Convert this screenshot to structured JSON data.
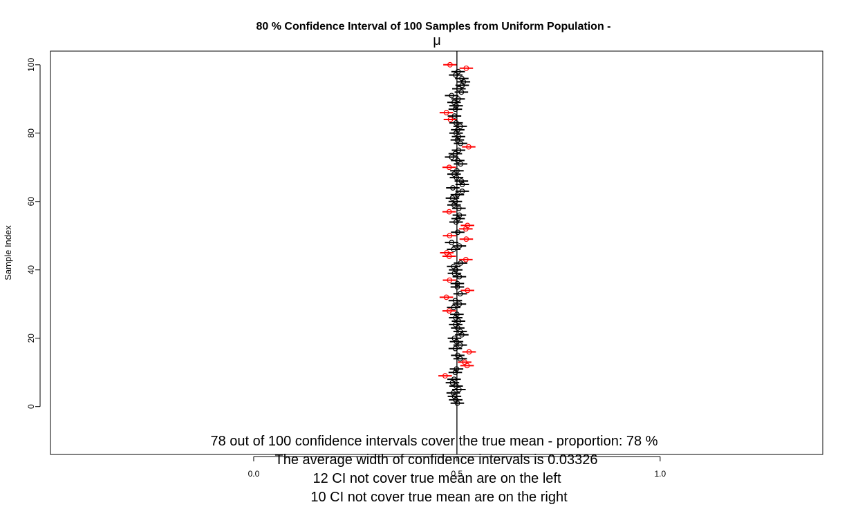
{
  "chart_data": {
    "type": "scatter",
    "title": "80 % Confidence Interval of 100  Samples from Uniform Population -",
    "mu_label": "μ",
    "xlabel": "",
    "ylabel": "Sample Index",
    "xlim": [
      -0.5,
      1.4
    ],
    "ylim": [
      -14,
      104
    ],
    "x_ticks": [
      0.0,
      0.5,
      1.0
    ],
    "x_tick_labels": [
      "0.0",
      "0.5",
      "1.0"
    ],
    "y_ticks": [
      0,
      20,
      40,
      60,
      80,
      100
    ],
    "y_tick_labels": [
      "0",
      "20",
      "40",
      "60",
      "80",
      "100"
    ],
    "true_mean": 0.5,
    "ci_width": 0.03326,
    "colors": {
      "cover": "#000000",
      "miss": "#ff0000",
      "mean_line": "#000000"
    },
    "samples": [
      {
        "i": 1,
        "mean": 0.501,
        "miss": false
      },
      {
        "i": 2,
        "mean": 0.497,
        "miss": false
      },
      {
        "i": 3,
        "mean": 0.494,
        "miss": false
      },
      {
        "i": 4,
        "mean": 0.491,
        "miss": false
      },
      {
        "i": 5,
        "mean": 0.505,
        "miss": false
      },
      {
        "i": 6,
        "mean": 0.498,
        "miss": false
      },
      {
        "i": 7,
        "mean": 0.489,
        "miss": false
      },
      {
        "i": 8,
        "mean": 0.493,
        "miss": false
      },
      {
        "i": 9,
        "mean": 0.471,
        "miss": true
      },
      {
        "i": 10,
        "mean": 0.496,
        "miss": false
      },
      {
        "i": 11,
        "mean": 0.499,
        "miss": false
      },
      {
        "i": 12,
        "mean": 0.525,
        "miss": true
      },
      {
        "i": 13,
        "mean": 0.519,
        "miss": true
      },
      {
        "i": 14,
        "mean": 0.508,
        "miss": false
      },
      {
        "i": 15,
        "mean": 0.502,
        "miss": false
      },
      {
        "i": 16,
        "mean": 0.53,
        "miss": true
      },
      {
        "i": 17,
        "mean": 0.496,
        "miss": false
      },
      {
        "i": 18,
        "mean": 0.508,
        "miss": false
      },
      {
        "i": 19,
        "mean": 0.499,
        "miss": false
      },
      {
        "i": 20,
        "mean": 0.494,
        "miss": false
      },
      {
        "i": 21,
        "mean": 0.512,
        "miss": false
      },
      {
        "i": 22,
        "mean": 0.508,
        "miss": false
      },
      {
        "i": 23,
        "mean": 0.502,
        "miss": false
      },
      {
        "i": 24,
        "mean": 0.497,
        "miss": false
      },
      {
        "i": 25,
        "mean": 0.504,
        "miss": false
      },
      {
        "i": 26,
        "mean": 0.497,
        "miss": false
      },
      {
        "i": 27,
        "mean": 0.5,
        "miss": false
      },
      {
        "i": 28,
        "mean": 0.481,
        "miss": true
      },
      {
        "i": 29,
        "mean": 0.492,
        "miss": false
      },
      {
        "i": 30,
        "mean": 0.506,
        "miss": false
      },
      {
        "i": 31,
        "mean": 0.496,
        "miss": false
      },
      {
        "i": 32,
        "mean": 0.474,
        "miss": true
      },
      {
        "i": 33,
        "mean": 0.508,
        "miss": false
      },
      {
        "i": 34,
        "mean": 0.526,
        "miss": true
      },
      {
        "i": 35,
        "mean": 0.501,
        "miss": false
      },
      {
        "i": 36,
        "mean": 0.501,
        "miss": false
      },
      {
        "i": 37,
        "mean": 0.482,
        "miss": true
      },
      {
        "i": 38,
        "mean": 0.506,
        "miss": false
      },
      {
        "i": 39,
        "mean": 0.494,
        "miss": false
      },
      {
        "i": 40,
        "mean": 0.497,
        "miss": false
      },
      {
        "i": 41,
        "mean": 0.492,
        "miss": false
      },
      {
        "i": 42,
        "mean": 0.509,
        "miss": false
      },
      {
        "i": 43,
        "mean": 0.522,
        "miss": true
      },
      {
        "i": 44,
        "mean": 0.481,
        "miss": true
      },
      {
        "i": 45,
        "mean": 0.475,
        "miss": true
      },
      {
        "i": 46,
        "mean": 0.492,
        "miss": false
      },
      {
        "i": 47,
        "mean": 0.506,
        "miss": false
      },
      {
        "i": 48,
        "mean": 0.487,
        "miss": false
      },
      {
        "i": 49,
        "mean": 0.523,
        "miss": true
      },
      {
        "i": 50,
        "mean": 0.482,
        "miss": true
      },
      {
        "i": 51,
        "mean": 0.502,
        "miss": false
      },
      {
        "i": 52,
        "mean": 0.522,
        "miss": true
      },
      {
        "i": 53,
        "mean": 0.526,
        "miss": true
      },
      {
        "i": 54,
        "mean": 0.498,
        "miss": false
      },
      {
        "i": 55,
        "mean": 0.503,
        "miss": false
      },
      {
        "i": 56,
        "mean": 0.506,
        "miss": false
      },
      {
        "i": 57,
        "mean": 0.481,
        "miss": true
      },
      {
        "i": 58,
        "mean": 0.505,
        "miss": false
      },
      {
        "i": 59,
        "mean": 0.493,
        "miss": false
      },
      {
        "i": 60,
        "mean": 0.496,
        "miss": false
      },
      {
        "i": 61,
        "mean": 0.489,
        "miss": false
      },
      {
        "i": 62,
        "mean": 0.501,
        "miss": false
      },
      {
        "i": 63,
        "mean": 0.513,
        "miss": false
      },
      {
        "i": 64,
        "mean": 0.49,
        "miss": false
      },
      {
        "i": 65,
        "mean": 0.513,
        "miss": false
      },
      {
        "i": 66,
        "mean": 0.511,
        "miss": false
      },
      {
        "i": 67,
        "mean": 0.499,
        "miss": false
      },
      {
        "i": 68,
        "mean": 0.493,
        "miss": false
      },
      {
        "i": 69,
        "mean": 0.5,
        "miss": false
      },
      {
        "i": 70,
        "mean": 0.481,
        "miss": true
      },
      {
        "i": 71,
        "mean": 0.509,
        "miss": false
      },
      {
        "i": 72,
        "mean": 0.502,
        "miss": false
      },
      {
        "i": 73,
        "mean": 0.487,
        "miss": false
      },
      {
        "i": 74,
        "mean": 0.496,
        "miss": false
      },
      {
        "i": 75,
        "mean": 0.504,
        "miss": false
      },
      {
        "i": 76,
        "mean": 0.529,
        "miss": true
      },
      {
        "i": 77,
        "mean": 0.509,
        "miss": false
      },
      {
        "i": 78,
        "mean": 0.501,
        "miss": false
      },
      {
        "i": 79,
        "mean": 0.504,
        "miss": false
      },
      {
        "i": 80,
        "mean": 0.498,
        "miss": false
      },
      {
        "i": 81,
        "mean": 0.502,
        "miss": false
      },
      {
        "i": 82,
        "mean": 0.508,
        "miss": false
      },
      {
        "i": 83,
        "mean": 0.498,
        "miss": false
      },
      {
        "i": 84,
        "mean": 0.484,
        "miss": true
      },
      {
        "i": 85,
        "mean": 0.494,
        "miss": false
      },
      {
        "i": 86,
        "mean": 0.474,
        "miss": true
      },
      {
        "i": 87,
        "mean": 0.496,
        "miss": false
      },
      {
        "i": 88,
        "mean": 0.498,
        "miss": false
      },
      {
        "i": 89,
        "mean": 0.493,
        "miss": false
      },
      {
        "i": 90,
        "mean": 0.503,
        "miss": false
      },
      {
        "i": 91,
        "mean": 0.487,
        "miss": false
      },
      {
        "i": 92,
        "mean": 0.511,
        "miss": false
      },
      {
        "i": 93,
        "mean": 0.505,
        "miss": false
      },
      {
        "i": 94,
        "mean": 0.513,
        "miss": false
      },
      {
        "i": 95,
        "mean": 0.516,
        "miss": false
      },
      {
        "i": 96,
        "mean": 0.512,
        "miss": false
      },
      {
        "i": 97,
        "mean": 0.497,
        "miss": false
      },
      {
        "i": 98,
        "mean": 0.503,
        "miss": false
      },
      {
        "i": 99,
        "mean": 0.523,
        "miss": true
      },
      {
        "i": 100,
        "mean": 0.483,
        "miss": true
      }
    ],
    "annotations": [
      "78 out of 100 confidence intervals cover the true mean - proportion: 78 %",
      "The average width of confidence intervals is 0.03326",
      "12 CI not cover true mean are on the left",
      "10 CI not cover true mean are on the right"
    ]
  }
}
